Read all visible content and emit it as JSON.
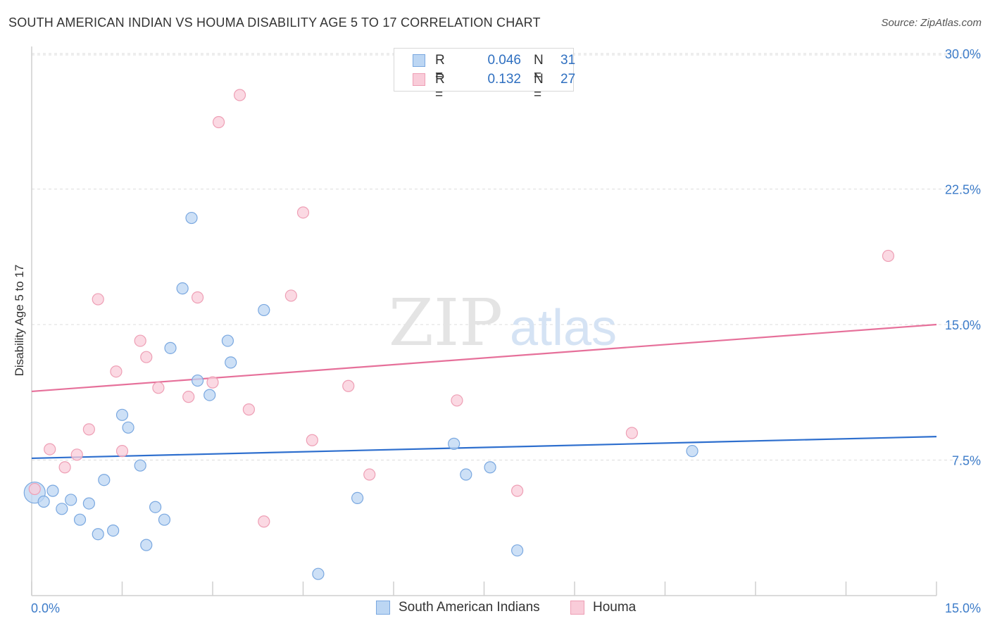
{
  "header": {
    "title": "SOUTH AMERICAN INDIAN VS HOUMA DISABILITY AGE 5 TO 17 CORRELATION CHART",
    "source": "Source: ZipAtlas.com"
  },
  "watermark": {
    "zip": "ZIP",
    "atlas": "atlas"
  },
  "legend": {
    "rows": [
      {
        "r_label": "R =",
        "r_value": "0.046",
        "n_label": "N =",
        "n_value": "31",
        "color": "#a9c9f0"
      },
      {
        "r_label": "R =",
        "r_value": "0.132",
        "n_label": "N =",
        "n_value": "27",
        "color": "#f7bfcf"
      }
    ]
  },
  "bottom_legend": [
    {
      "label": "South American Indians",
      "color": "#a9c9f0"
    },
    {
      "label": "Houma",
      "color": "#f7bfcf"
    }
  ],
  "colors": {
    "blue_fill": "#bcd6f3",
    "blue_stroke": "#7aa8e0",
    "blue_line": "#2e6fce",
    "pink_fill": "#f9ccd9",
    "pink_stroke": "#ee9fb5",
    "pink_line": "#e6709a",
    "tick_text": "#3d7cc9",
    "grid": "#dddddd"
  },
  "chart_data": {
    "type": "scatter",
    "title": "SOUTH AMERICAN INDIAN VS HOUMA DISABILITY AGE 5 TO 17 CORRELATION CHART",
    "xlabel": "",
    "ylabel": "Disability Age 5 to 17",
    "xlim": [
      0,
      15
    ],
    "ylim": [
      0,
      30.7
    ],
    "x_tick_labels": [
      "0.0%",
      "15.0%"
    ],
    "y_ticks": [
      7.5,
      15.0,
      22.5,
      30.0
    ],
    "y_tick_labels": [
      "7.5%",
      "15.0%",
      "22.5%",
      "30.0%"
    ],
    "grid": true,
    "legend_position": "top-center",
    "series": [
      {
        "name": "South American Indians",
        "points": [
          [
            0.05,
            5.7
          ],
          [
            0.2,
            5.2
          ],
          [
            0.35,
            5.8
          ],
          [
            0.5,
            4.8
          ],
          [
            0.65,
            5.3
          ],
          [
            0.8,
            4.2
          ],
          [
            0.95,
            5.1
          ],
          [
            1.1,
            3.4
          ],
          [
            1.2,
            6.4
          ],
          [
            1.35,
            3.6
          ],
          [
            1.5,
            10.0
          ],
          [
            1.6,
            9.3
          ],
          [
            1.9,
            2.8
          ],
          [
            2.05,
            4.9
          ],
          [
            2.2,
            4.2
          ],
          [
            1.8,
            7.2
          ],
          [
            2.3,
            13.7
          ],
          [
            2.5,
            17.0
          ],
          [
            2.65,
            20.9
          ],
          [
            2.75,
            11.9
          ],
          [
            2.95,
            11.1
          ],
          [
            3.25,
            14.1
          ],
          [
            3.3,
            12.9
          ],
          [
            3.85,
            15.8
          ],
          [
            4.75,
            1.2
          ],
          [
            5.4,
            5.4
          ],
          [
            7.0,
            8.4
          ],
          [
            7.2,
            6.7
          ],
          [
            7.6,
            7.1
          ],
          [
            8.05,
            2.5
          ],
          [
            10.95,
            8.0
          ]
        ],
        "trend": [
          [
            0,
            7.6
          ],
          [
            15,
            8.8
          ]
        ]
      },
      {
        "name": "Houma",
        "points": [
          [
            0.05,
            5.9
          ],
          [
            0.3,
            8.1
          ],
          [
            0.55,
            7.1
          ],
          [
            0.75,
            7.8
          ],
          [
            0.95,
            9.2
          ],
          [
            1.1,
            16.4
          ],
          [
            1.4,
            12.4
          ],
          [
            1.5,
            8.0
          ],
          [
            1.8,
            14.1
          ],
          [
            1.9,
            13.2
          ],
          [
            2.1,
            11.5
          ],
          [
            2.6,
            11.0
          ],
          [
            2.75,
            16.5
          ],
          [
            3.0,
            11.8
          ],
          [
            3.1,
            26.2
          ],
          [
            3.45,
            27.7
          ],
          [
            3.6,
            10.3
          ],
          [
            3.85,
            4.1
          ],
          [
            4.3,
            16.6
          ],
          [
            4.5,
            21.2
          ],
          [
            4.65,
            8.6
          ],
          [
            5.25,
            11.6
          ],
          [
            5.6,
            6.7
          ],
          [
            7.05,
            10.8
          ],
          [
            8.05,
            5.8
          ],
          [
            9.95,
            9.0
          ],
          [
            14.2,
            18.8
          ]
        ],
        "trend": [
          [
            0,
            11.3
          ],
          [
            15,
            15.0
          ]
        ]
      }
    ]
  }
}
